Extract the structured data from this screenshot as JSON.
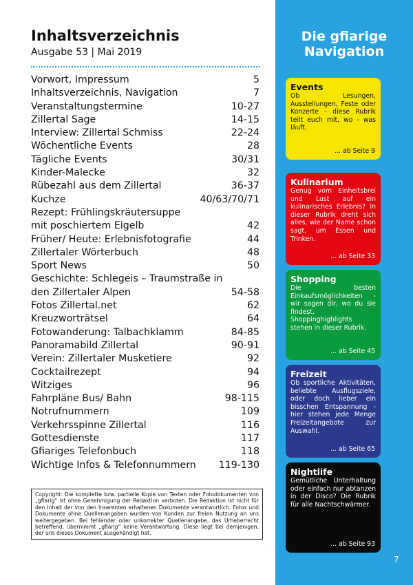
{
  "header": {
    "title": "Inhaltsverzeichnis",
    "subtitle": "Ausgabe 53 | Mai 2019"
  },
  "toc": [
    {
      "lines": [
        "Vorwort, Impressum"
      ],
      "pages": "5"
    },
    {
      "lines": [
        "Inhaltsverzeichnis, Navigation"
      ],
      "pages": "7"
    },
    {
      "lines": [
        "Veranstaltungstermine"
      ],
      "pages": "10-27"
    },
    {
      "lines": [
        "Zillertal Sage"
      ],
      "pages": "14-15"
    },
    {
      "lines": [
        "Interview: Zillertal Schmiss"
      ],
      "pages": "22-24"
    },
    {
      "lines": [
        "Wöchentliche Events"
      ],
      "pages": "28"
    },
    {
      "lines": [
        "Tägliche Events"
      ],
      "pages": "30/31"
    },
    {
      "lines": [
        "Kinder-Malecke"
      ],
      "pages": "32"
    },
    {
      "lines": [
        "Rübezahl aus dem Zillertal"
      ],
      "pages": "36-37"
    },
    {
      "lines": [
        "Kuchze"
      ],
      "pages": "40/63/70/71"
    },
    {
      "lines": [
        "Rezept: Frühlingskräutersuppe",
        "mit poschiertem Eigelb"
      ],
      "pages": "42"
    },
    {
      "lines": [
        "Früher/ Heute: Erlebnisfotografie"
      ],
      "pages": "44"
    },
    {
      "lines": [
        "Zillertaler Wörterbuch"
      ],
      "pages": "48"
    },
    {
      "lines": [
        "Sport News"
      ],
      "pages": "50"
    },
    {
      "lines": [
        "Geschichte: Schlegeis – Traumstraße in",
        "den Zillertaler Alpen"
      ],
      "pages": "54-58"
    },
    {
      "lines": [
        "Fotos Zillertal.net"
      ],
      "pages": "62"
    },
    {
      "lines": [
        "Kreuzworträtsel"
      ],
      "pages": "64"
    },
    {
      "lines": [
        "Fotowanderung: Talbachklamm"
      ],
      "pages": "84-85"
    },
    {
      "lines": [
        "Panoramabild Zillertal"
      ],
      "pages": "90-91"
    },
    {
      "lines": [
        "Verein: Zillertaler Musketiere"
      ],
      "pages": "92"
    },
    {
      "lines": [
        "Cocktailrezept"
      ],
      "pages": "94"
    },
    {
      "lines": [
        "Witziges"
      ],
      "pages": "96"
    },
    {
      "lines": [
        "Fahrpläne Bus/ Bahn"
      ],
      "pages": "98-115"
    },
    {
      "lines": [
        "Notrufnummern"
      ],
      "pages": "109"
    },
    {
      "lines": [
        "Verkehrsspinne Zillertal"
      ],
      "pages": "116"
    },
    {
      "lines": [
        "Gottesdienste"
      ],
      "pages": "117"
    },
    {
      "lines": [
        "Gfiariges Telefonbuch"
      ],
      "pages": "118"
    },
    {
      "lines": [
        "Wichtige Infos & Telefonnummern"
      ],
      "pages": "119-130"
    }
  ],
  "copyright": "Copyright: Die komplette bzw. partielle Kopie von Texten oder Fotodokumenten von „gfiarig“ ist ohne Genehmigung der Redaktion verboten. Die Redaktion ist nicht für den Inhalt der von den Inserenten erhaltenen Dokumente verantwortlich. Fotos und Dokumente ohne Quellenangaben wurden von Kunden zur freien Nutzung an uns weitergegeben. Bei fehlender oder unkorrekter Quellenangabe, das Urheberrecht betreffend, übernimmt „gfiarig“ keine Verantwortung. Diese liegt bei demjenigen, der uns dieses Dokument ausgehändigt hat.",
  "sidebar": {
    "title": "Die gfiarige Navigation",
    "boxes": [
      {
        "title": "Events",
        "text": "Ob Lesungen, Ausstellungen, Feste oder Konzerte - diese Rubrik teilt euch mit, wo - was läuft.",
        "ref": "... ab Seite 9"
      },
      {
        "title": "Kulinarium",
        "text": "Genug vom Einheitsbrei und Lust auf ein kulinarisches Erlebnis? In dieser Rubrik dreht sich alles, wie der Name schon sagt, um Essen und Trinken.",
        "ref": "... ab Seite 33"
      },
      {
        "title": "Shopping",
        "text": "Die besten Einkaufsmöglichkeiten - wir sagen dir, wo du sie findest. Shoppinghighlights stehen in dieser Rubrik.",
        "ref": "... ab Seite 45"
      },
      {
        "title": "Freizeit",
        "text": "Ob sportliche Aktivitäten, beliebte Ausflugsziele, oder doch lieber ein bisschen Entspannung - hier stehen jede Menge Freizeitangebote zur Auswahl.",
        "ref": "... ab Seite 65"
      },
      {
        "title": "Nightlife",
        "text": "Gemütliche Unterhaltung oder einfach nur abtanzen in der Disco? Die Rubrik für alle Nachtschwärmer.",
        "ref": "... ab Seite 93"
      }
    ],
    "page_number": "7"
  }
}
